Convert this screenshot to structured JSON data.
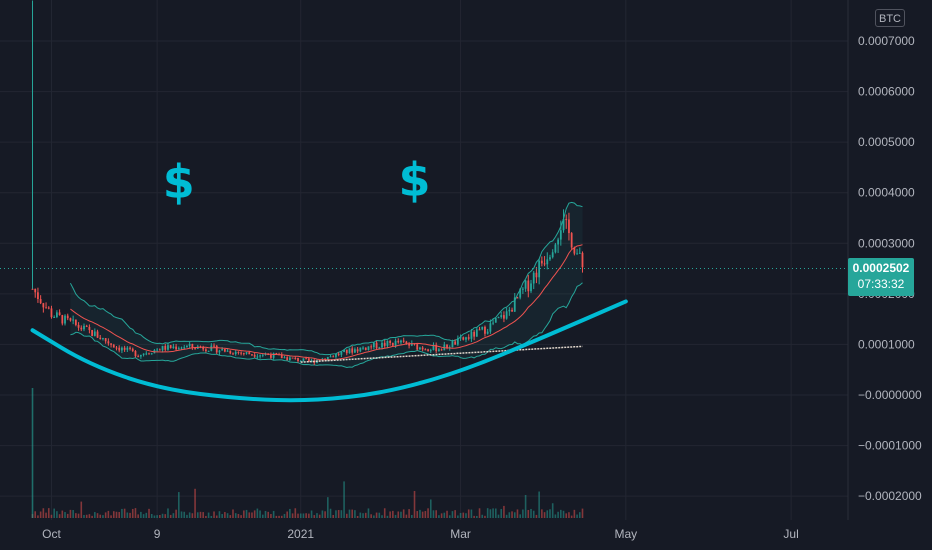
{
  "currency_badge": "BTC",
  "price_tag": {
    "price": "0.0002502",
    "countdown": "07:33:32"
  },
  "annotations": [
    "$",
    "$"
  ],
  "colors": {
    "background": "#161a25",
    "grid": "#232632",
    "up": "#26a69a",
    "down": "#ef5350",
    "curve": "#00bcd4",
    "band": "#26a69a",
    "sma": "#ef5350",
    "long_ma": "#e0d6cc"
  },
  "chart_data": {
    "type": "candlestick",
    "title": "",
    "y_ticks": [
      "0.0007000",
      "0.0006000",
      "0.0005000",
      "0.0004000",
      "0.0003000",
      "0.0002000",
      "0.0001000",
      "−0.0000000",
      "−0.0001000",
      "−0.0002000"
    ],
    "y_tick_values": [
      0.0007,
      0.0006,
      0.0005,
      0.0004,
      0.0003,
      0.0002,
      0.0001,
      0,
      -0.0001,
      -0.0002
    ],
    "x_ticks": [
      "Oct",
      "9",
      "2021",
      "Mar",
      "May",
      "Jul"
    ],
    "x_tick_dates": [
      "2020-10-01",
      "2020-11-09",
      "2021-01-01",
      "2021-03-01",
      "2021-05-01",
      "2021-07-01"
    ],
    "ylim": [
      -0.00024,
      0.00078
    ],
    "xlim": [
      "2020-09-12",
      "2021-07-22"
    ],
    "current_price": 0.0002502,
    "initial_spike_high": 0.00078,
    "series": [
      {
        "dates": [
          "2020-09-24",
          "2020-10-01",
          "2020-10-09",
          "2020-10-17",
          "2020-10-25",
          "2020-11-02",
          "2020-11-10",
          "2020-11-18",
          "2020-11-26",
          "2020-12-04",
          "2020-12-12",
          "2020-12-20",
          "2020-12-28",
          "2021-01-05",
          "2021-01-13",
          "2021-01-21",
          "2021-01-29",
          "2021-02-06",
          "2021-02-14",
          "2021-02-22",
          "2021-03-02",
          "2021-03-10",
          "2021-03-18",
          "2021-03-26",
          "2021-04-03",
          "2021-04-07",
          "2021-04-11",
          "2021-04-15"
        ],
        "close": [
          0.00021,
          0.00016,
          0.00014,
          0.00012,
          9.5e-05,
          8e-05,
          9.2e-05,
          9.6e-05,
          9.4e-05,
          8.8e-05,
          8.2e-05,
          8e-05,
          7.2e-05,
          6.6e-05,
          7.8e-05,
          9e-05,
          9.8e-05,
          0.000104,
          9.4e-05,
          9.2e-05,
          0.00011,
          0.00013,
          0.00016,
          0.00022,
          0.00029,
          0.00034,
          0.00031,
          0.00025
        ]
      }
    ],
    "fitted_curve": {
      "dates": [
        "2020-09-24",
        "2020-10-15",
        "2020-11-10",
        "2020-12-10",
        "2021-01-05",
        "2021-02-01",
        "2021-03-01",
        "2021-04-01",
        "2021-05-01"
      ],
      "values": [
        0.000128,
        6e-05,
        1.2e-05,
        -8e-06,
        -1.2e-05,
        4e-06,
        4.6e-05,
        0.000115,
        0.000185
      ]
    },
    "volume_bars": 180
  }
}
